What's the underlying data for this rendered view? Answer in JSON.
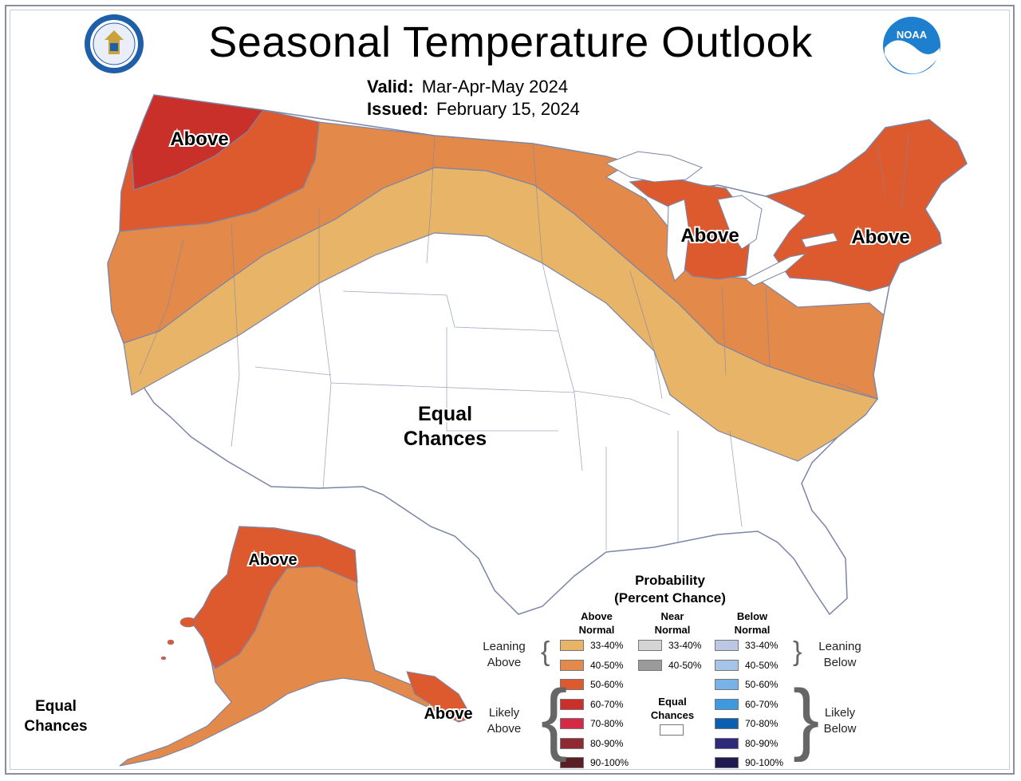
{
  "header": {
    "title": "Seasonal Temperature Outlook",
    "valid_label": "Valid:",
    "valid_value": "Mar-Apr-May 2024",
    "issued_label": "Issued:",
    "issued_value": "February 15, 2024"
  },
  "map_labels": {
    "pnw": "Above",
    "great_lakes": "Above",
    "northeast": "Above",
    "conus_center_1": "Equal",
    "conus_center_2": "Chances",
    "alaska_north": "Above",
    "alaska_se": "Above",
    "alaska_west_1": "Equal",
    "alaska_west_2": "Chances"
  },
  "colors": {
    "above_33_40": "#e8b468",
    "above_40_50": "#e3894a",
    "above_50_60": "#dd5a2f",
    "above_60_70": "#c9302a",
    "above_70_80": "#d42a45",
    "above_80_90": "#8f2a34",
    "above_90_100": "#5a1f25",
    "near_33_40": "#d4d4d4",
    "near_40_50": "#9a9a9a",
    "below_33_40": "#bcc7e3",
    "below_40_50": "#a6c4e6",
    "below_50_60": "#78b2e6",
    "below_60_70": "#3d9ae0",
    "below_70_80": "#0a5fb0",
    "below_80_90": "#2d2a7a",
    "below_90_100": "#1f1a4f",
    "equal": "#ffffff",
    "boundary": "#7a85a8"
  },
  "legend": {
    "title_1": "Probability",
    "title_2": "(Percent Chance)",
    "above_header_1": "Above",
    "above_header_2": "Normal",
    "near_header_1": "Near",
    "near_header_2": "Normal",
    "below_header_1": "Below",
    "below_header_2": "Normal",
    "above_ranges": [
      "33-40%",
      "40-50%",
      "50-60%",
      "60-70%",
      "70-80%",
      "80-90%",
      "90-100%"
    ],
    "near_ranges": [
      "33-40%",
      "40-50%"
    ],
    "below_ranges": [
      "33-40%",
      "40-50%",
      "50-60%",
      "60-70%",
      "70-80%",
      "80-90%",
      "90-100%"
    ],
    "equal_1": "Equal",
    "equal_2": "Chances",
    "leaning_above_1": "Leaning",
    "leaning_above_2": "Above",
    "likely_above_1": "Likely",
    "likely_above_2": "Above",
    "leaning_below_1": "Leaning",
    "leaning_below_2": "Below",
    "likely_below_1": "Likely",
    "likely_below_2": "Below"
  },
  "logos": {
    "left": "department-of-commerce-seal",
    "right": "noaa-logo",
    "right_text": "NOAA"
  }
}
